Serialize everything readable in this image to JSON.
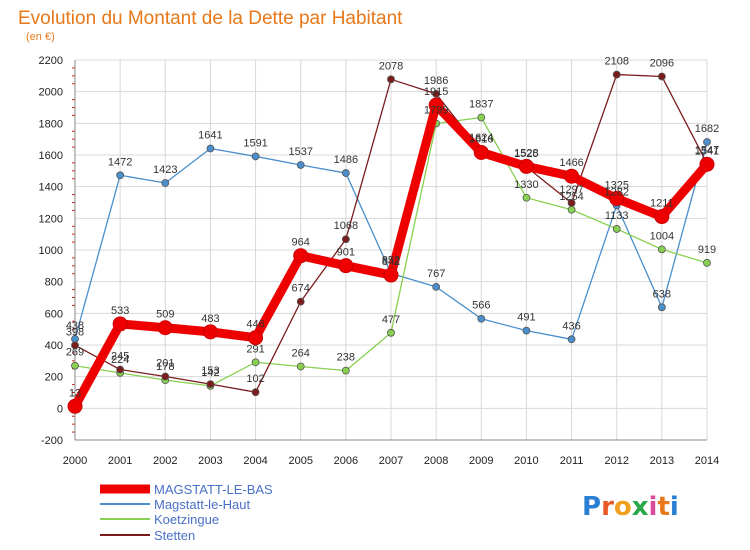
{
  "title": "Evolution du Montant de la Dette par Habitant",
  "subtitle": "(en €)",
  "logo": "Proxiti",
  "chart_data": {
    "type": "line",
    "title": "Evolution du Montant de la Dette par Habitant",
    "subtitle": "(en €)",
    "x": [
      "2000",
      "2001",
      "2002",
      "2003",
      "2004",
      "2005",
      "2006",
      "2007",
      "2008",
      "2009",
      "2010",
      "2011",
      "2012",
      "2013",
      "2014"
    ],
    "ylim": [
      -200,
      2200
    ],
    "yticks": [
      "-200",
      "0",
      "200",
      "400",
      "600",
      "800",
      "1000",
      "1200",
      "1400",
      "1600",
      "1800",
      "2000",
      "2200"
    ],
    "grid": true,
    "legend_placement": "bottom-left",
    "series": [
      {
        "name": "MAGSTATT-LE-BAS",
        "color": "#ee0000",
        "values": [
          13,
          533,
          509,
          483,
          446,
          964,
          901,
          842,
          1915,
          1616,
          1528,
          1466,
          1325,
          1211,
          1541
        ],
        "labels": [
          "13",
          "533",
          "509",
          "483",
          "446",
          "964",
          "901",
          "842",
          "1915",
          "1616",
          "1528",
          "1466",
          "1325",
          "1211",
          "1541"
        ]
      },
      {
        "name": "Magstatt-le-Haut",
        "color": "#4a8fcc",
        "values": [
          438,
          1472,
          1423,
          1641,
          1591,
          1537,
          1486,
          852,
          767,
          566,
          491,
          436,
          1282,
          638,
          1682
        ],
        "labels": [
          "438",
          "1472",
          "1423",
          "1641",
          "1591",
          "1537",
          "1486",
          "852",
          "767",
          "566",
          "491",
          "436",
          "1282",
          "638",
          "1682"
        ]
      },
      {
        "name": "Koetzingue",
        "color": "#88d050",
        "values": [
          269,
          224,
          178,
          142,
          291,
          264,
          238,
          477,
          1799,
          1837,
          1330,
          1254,
          1133,
          1004,
          919
        ],
        "labels": [
          "269",
          "224",
          "178",
          "142",
          "291",
          "264",
          "238",
          "477",
          "1799",
          "1837",
          "1330",
          "1254",
          "1133",
          "1004",
          "919"
        ]
      },
      {
        "name": "Stetten",
        "color": "#7a1c1c",
        "values": [
          398,
          245,
          201,
          153,
          102,
          674,
          1068,
          2078,
          1986,
          1624,
          1525,
          1297,
          2108,
          2096,
          1547
        ],
        "labels": [
          "398",
          "245",
          "201",
          "153",
          "102",
          "674",
          "1068",
          "2078",
          "1986",
          "1624",
          "1525",
          "1297",
          "2108",
          "2096",
          "1547"
        ]
      }
    ]
  }
}
